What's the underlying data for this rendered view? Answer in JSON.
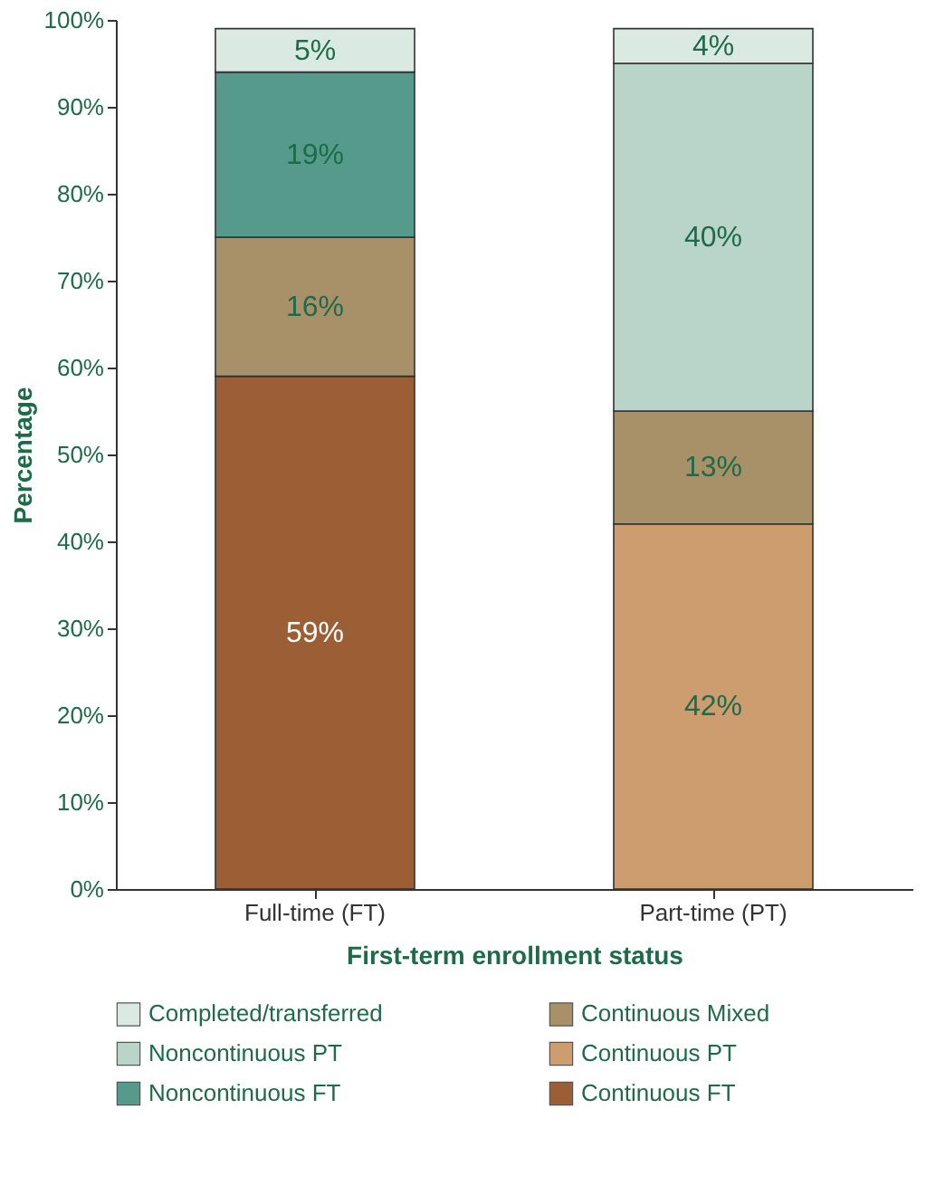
{
  "chart_data": {
    "type": "bar",
    "stacked": true,
    "xlabel": "First-term enrollment status",
    "ylabel": "Percentage",
    "categories": [
      "Full-time (FT)",
      "Part-time (PT)"
    ],
    "series": [
      {
        "name": "Continuous FT",
        "color": "#9c5f35",
        "values": [
          59,
          null
        ],
        "value_labels": [
          "59%",
          null
        ]
      },
      {
        "name": "Continuous PT",
        "color": "#cd9c6f",
        "values": [
          null,
          42
        ],
        "value_labels": [
          null,
          "42%"
        ]
      },
      {
        "name": "Continuous Mixed",
        "color": "#a89068",
        "values": [
          16,
          13
        ],
        "value_labels": [
          "16%",
          "13%"
        ]
      },
      {
        "name": "Noncontinuous FT",
        "color": "#559a8a",
        "values": [
          19,
          null
        ],
        "value_labels": [
          "19%",
          null
        ]
      },
      {
        "name": "Noncontinuous PT",
        "color": "#b9d4c9",
        "values": [
          null,
          40
        ],
        "value_labels": [
          null,
          "40%"
        ]
      },
      {
        "name": "Completed/transferred",
        "color": "#dbe9e3",
        "values": [
          5,
          4
        ],
        "value_labels": [
          "5%",
          "4%"
        ]
      }
    ],
    "ylim": [
      0,
      100
    ],
    "yticks": [
      {
        "value": 0,
        "label": "0%"
      },
      {
        "value": 10,
        "label": "10%"
      },
      {
        "value": 20,
        "label": "20%"
      },
      {
        "value": 30,
        "label": "30%"
      },
      {
        "value": 40,
        "label": "40%"
      },
      {
        "value": 50,
        "label": "50%"
      },
      {
        "value": 60,
        "label": "60%"
      },
      {
        "value": 70,
        "label": "70%"
      },
      {
        "value": 80,
        "label": "80%"
      },
      {
        "value": 90,
        "label": "90%"
      },
      {
        "value": 100,
        "label": "100%"
      }
    ],
    "grid": false,
    "legend": "bottom"
  }
}
